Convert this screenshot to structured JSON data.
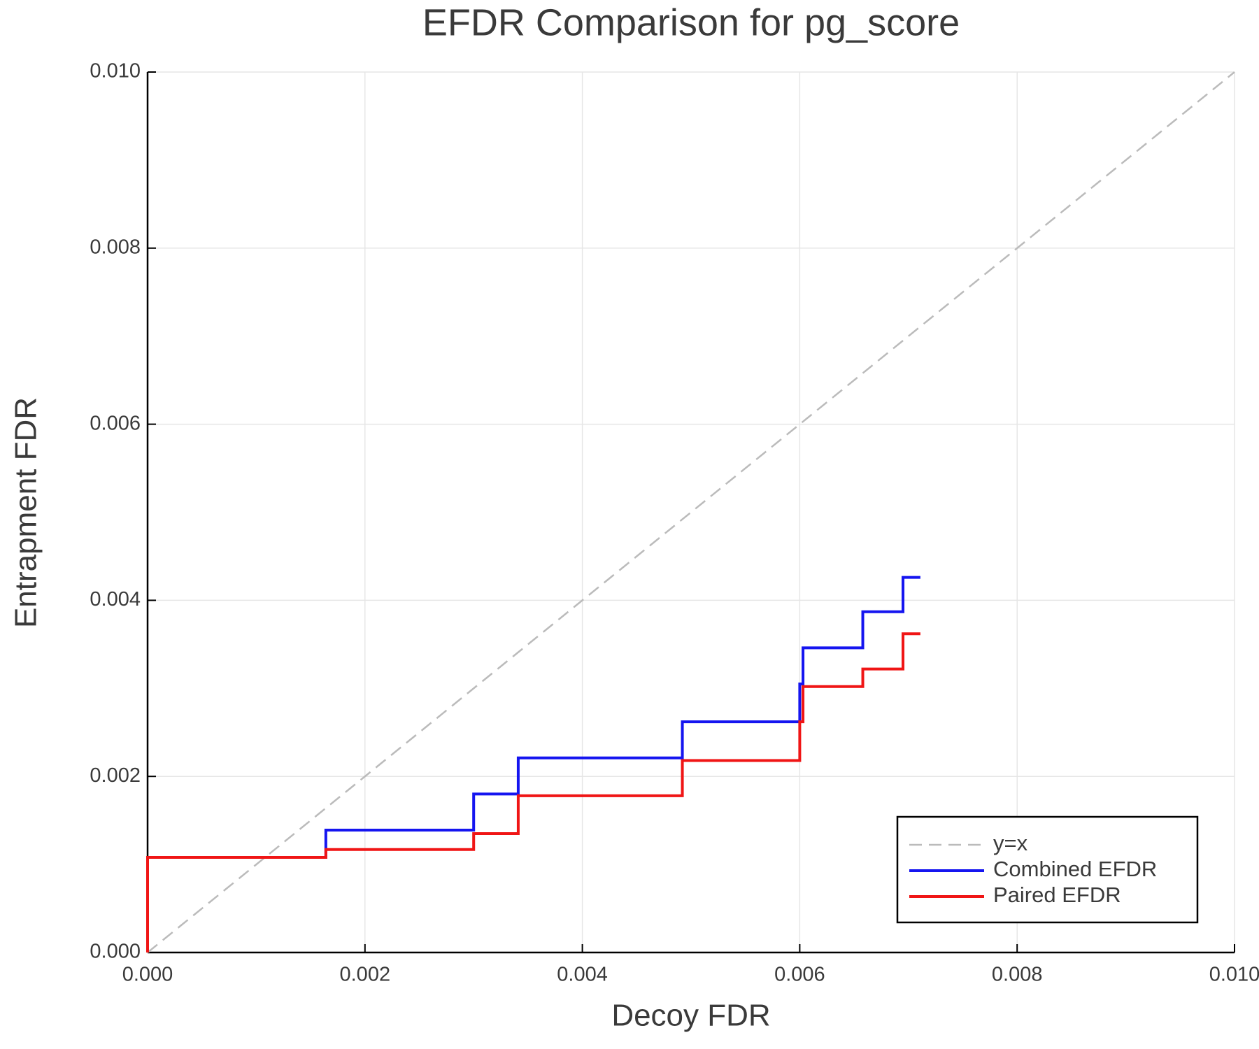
{
  "chart_data": {
    "type": "line",
    "title": "EFDR Comparison for pg_score",
    "x_label": "Decoy FDR",
    "y_label": "Entrapment FDR",
    "xlim": [
      0,
      0.01
    ],
    "ylim": [
      0,
      0.01
    ],
    "xticks": [
      {
        "value": 0,
        "label": "0.000"
      },
      {
        "value": 0.002,
        "label": "0.002"
      },
      {
        "value": 0.004,
        "label": "0.004"
      },
      {
        "value": 0.006,
        "label": "0.006"
      },
      {
        "value": 0.008,
        "label": "0.008"
      },
      {
        "value": 0.01,
        "label": "0.010"
      }
    ],
    "yticks": [
      {
        "value": 0,
        "label": "0.000"
      },
      {
        "value": 0.002,
        "label": "0.002"
      },
      {
        "value": 0.004,
        "label": "0.004"
      },
      {
        "value": 0.006,
        "label": "0.006"
      },
      {
        "value": 0.008,
        "label": "0.008"
      },
      {
        "value": 0.01,
        "label": "0.010"
      }
    ],
    "grid": true,
    "legend": "lower right",
    "series": [
      {
        "name": "y=x",
        "color": "#bbbbbb",
        "dashed": true,
        "x": [
          0,
          0.01
        ],
        "values": [
          0,
          0.01
        ]
      },
      {
        "name": "Combined EFDR",
        "color": "#1515f0",
        "x": [
          0,
          0,
          0.00164,
          0.00164,
          0.003,
          0.003,
          0.00341,
          0.00341,
          0.00492,
          0.00492,
          0.006,
          0.006,
          0.00603,
          0.00603,
          0.00658,
          0.00658,
          0.00695,
          0.00695,
          0.00711
        ],
        "values": [
          0,
          0.00108,
          0.00108,
          0.00139,
          0.00139,
          0.0018,
          0.0018,
          0.00221,
          0.00221,
          0.00262,
          0.00262,
          0.00305,
          0.00305,
          0.00346,
          0.00346,
          0.00387,
          0.00387,
          0.00426,
          0.00426
        ]
      },
      {
        "name": "Paired EFDR",
        "color": "#f01515",
        "x": [
          0,
          0,
          0.00164,
          0.00164,
          0.003,
          0.003,
          0.00341,
          0.00341,
          0.00492,
          0.00492,
          0.006,
          0.006,
          0.00603,
          0.00603,
          0.00658,
          0.00658,
          0.00695,
          0.00695,
          0.00711
        ],
        "values": [
          0,
          0.00108,
          0.00108,
          0.00117,
          0.00117,
          0.00135,
          0.00135,
          0.00178,
          0.00178,
          0.00218,
          0.00218,
          0.00262,
          0.00262,
          0.00302,
          0.00302,
          0.00322,
          0.00322,
          0.00362,
          0.00362
        ]
      }
    ]
  }
}
